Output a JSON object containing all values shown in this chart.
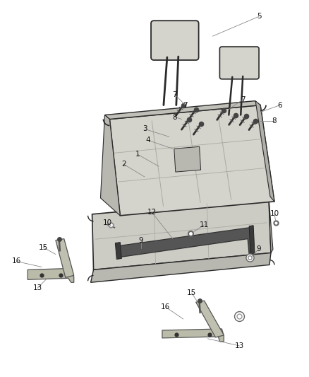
{
  "bg_color": "#ffffff",
  "line_color": "#2a2a2a",
  "seat_face_color": "#d8d7d0",
  "seat_side_color": "#b8b7b0",
  "seat_top_color": "#c8c7c0",
  "seat_bottom_color": "#c0bfb8",
  "headrest_color": "#d0cfc8",
  "bar_color": "#444444",
  "bracket_color": "#b8b8a8",
  "leader_color": "#888888",
  "label_color": "#111111",
  "figsize": [
    4.38,
    5.33
  ],
  "dpi": 100
}
